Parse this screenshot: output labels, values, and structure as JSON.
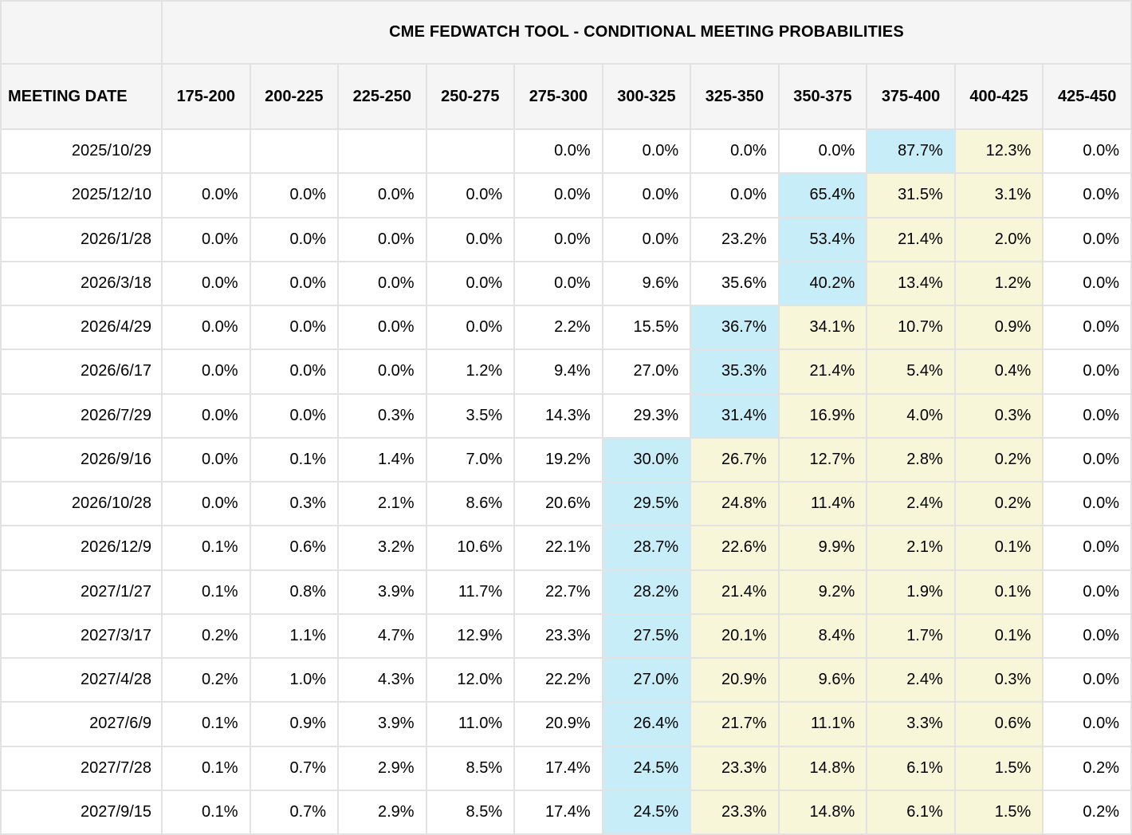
{
  "title": "CME FEDWATCH TOOL - CONDITIONAL MEETING PROBABILITIES",
  "colors": {
    "highlight_cyan": "#c7edf8",
    "highlight_yellow": "#f7f6d8",
    "header_bg": "#f5f5f5",
    "grid_border": "#e2e2e2",
    "text": "#000000"
  },
  "chart_data": {
    "type": "table",
    "title": "CME FEDWATCH TOOL - CONDITIONAL MEETING PROBABILITIES",
    "row_header_label": "MEETING DATE",
    "columns": [
      "175-200",
      "200-225",
      "225-250",
      "250-275",
      "275-300",
      "300-325",
      "325-350",
      "350-375",
      "375-400",
      "400-425",
      "425-450"
    ],
    "value_unit": "percent probability",
    "layout_hints": {
      "cyan_col_meaning": "highest-probability rate bin per meeting, cyan highlight",
      "yellow_cols_meaning": "pale-yellow highlighted bins",
      "grid": true
    },
    "rows": [
      {
        "date": "2025/10/29",
        "values": [
          null,
          null,
          null,
          null,
          "0.0%",
          "0.0%",
          "0.0%",
          "0.0%",
          "87.7%",
          "12.3%",
          "0.0%"
        ],
        "cyan_col": 8,
        "yellow_cols": [
          9
        ]
      },
      {
        "date": "2025/12/10",
        "values": [
          "0.0%",
          "0.0%",
          "0.0%",
          "0.0%",
          "0.0%",
          "0.0%",
          "0.0%",
          "65.4%",
          "31.5%",
          "3.1%",
          "0.0%"
        ],
        "cyan_col": 7,
        "yellow_cols": [
          8,
          9
        ]
      },
      {
        "date": "2026/1/28",
        "values": [
          "0.0%",
          "0.0%",
          "0.0%",
          "0.0%",
          "0.0%",
          "0.0%",
          "23.2%",
          "53.4%",
          "21.4%",
          "2.0%",
          "0.0%"
        ],
        "cyan_col": 7,
        "yellow_cols": [
          8,
          9
        ]
      },
      {
        "date": "2026/3/18",
        "values": [
          "0.0%",
          "0.0%",
          "0.0%",
          "0.0%",
          "0.0%",
          "9.6%",
          "35.6%",
          "40.2%",
          "13.4%",
          "1.2%",
          "0.0%"
        ],
        "cyan_col": 7,
        "yellow_cols": [
          8,
          9
        ]
      },
      {
        "date": "2026/4/29",
        "values": [
          "0.0%",
          "0.0%",
          "0.0%",
          "0.0%",
          "2.2%",
          "15.5%",
          "36.7%",
          "34.1%",
          "10.7%",
          "0.9%",
          "0.0%"
        ],
        "cyan_col": 6,
        "yellow_cols": [
          7,
          8,
          9
        ]
      },
      {
        "date": "2026/6/17",
        "values": [
          "0.0%",
          "0.0%",
          "0.0%",
          "1.2%",
          "9.4%",
          "27.0%",
          "35.3%",
          "21.4%",
          "5.4%",
          "0.4%",
          "0.0%"
        ],
        "cyan_col": 6,
        "yellow_cols": [
          7,
          8,
          9
        ]
      },
      {
        "date": "2026/7/29",
        "values": [
          "0.0%",
          "0.0%",
          "0.3%",
          "3.5%",
          "14.3%",
          "29.3%",
          "31.4%",
          "16.9%",
          "4.0%",
          "0.3%",
          "0.0%"
        ],
        "cyan_col": 6,
        "yellow_cols": [
          7,
          8,
          9
        ]
      },
      {
        "date": "2026/9/16",
        "values": [
          "0.0%",
          "0.1%",
          "1.4%",
          "7.0%",
          "19.2%",
          "30.0%",
          "26.7%",
          "12.7%",
          "2.8%",
          "0.2%",
          "0.0%"
        ],
        "cyan_col": 5,
        "yellow_cols": [
          6,
          7,
          8,
          9
        ]
      },
      {
        "date": "2026/10/28",
        "values": [
          "0.0%",
          "0.3%",
          "2.1%",
          "8.6%",
          "20.6%",
          "29.5%",
          "24.8%",
          "11.4%",
          "2.4%",
          "0.2%",
          "0.0%"
        ],
        "cyan_col": 5,
        "yellow_cols": [
          6,
          7,
          8,
          9
        ]
      },
      {
        "date": "2026/12/9",
        "values": [
          "0.1%",
          "0.6%",
          "3.2%",
          "10.6%",
          "22.1%",
          "28.7%",
          "22.6%",
          "9.9%",
          "2.1%",
          "0.1%",
          "0.0%"
        ],
        "cyan_col": 5,
        "yellow_cols": [
          6,
          7,
          8,
          9
        ]
      },
      {
        "date": "2027/1/27",
        "values": [
          "0.1%",
          "0.8%",
          "3.9%",
          "11.7%",
          "22.7%",
          "28.2%",
          "21.4%",
          "9.2%",
          "1.9%",
          "0.1%",
          "0.0%"
        ],
        "cyan_col": 5,
        "yellow_cols": [
          6,
          7,
          8,
          9
        ]
      },
      {
        "date": "2027/3/17",
        "values": [
          "0.2%",
          "1.1%",
          "4.7%",
          "12.9%",
          "23.3%",
          "27.5%",
          "20.1%",
          "8.4%",
          "1.7%",
          "0.1%",
          "0.0%"
        ],
        "cyan_col": 5,
        "yellow_cols": [
          6,
          7,
          8,
          9
        ]
      },
      {
        "date": "2027/4/28",
        "values": [
          "0.2%",
          "1.0%",
          "4.3%",
          "12.0%",
          "22.2%",
          "27.0%",
          "20.9%",
          "9.6%",
          "2.4%",
          "0.3%",
          "0.0%"
        ],
        "cyan_col": 5,
        "yellow_cols": [
          6,
          7,
          8,
          9
        ]
      },
      {
        "date": "2027/6/9",
        "values": [
          "0.1%",
          "0.9%",
          "3.9%",
          "11.0%",
          "20.9%",
          "26.4%",
          "21.7%",
          "11.1%",
          "3.3%",
          "0.6%",
          "0.0%"
        ],
        "cyan_col": 5,
        "yellow_cols": [
          6,
          7,
          8,
          9
        ]
      },
      {
        "date": "2027/7/28",
        "values": [
          "0.1%",
          "0.7%",
          "2.9%",
          "8.5%",
          "17.4%",
          "24.5%",
          "23.3%",
          "14.8%",
          "6.1%",
          "1.5%",
          "0.2%"
        ],
        "cyan_col": 5,
        "yellow_cols": [
          6,
          7,
          8,
          9
        ]
      },
      {
        "date": "2027/9/15",
        "values": [
          "0.1%",
          "0.7%",
          "2.9%",
          "8.5%",
          "17.4%",
          "24.5%",
          "23.3%",
          "14.8%",
          "6.1%",
          "1.5%",
          "0.2%"
        ],
        "cyan_col": 5,
        "yellow_cols": [
          6,
          7,
          8,
          9
        ]
      }
    ]
  }
}
